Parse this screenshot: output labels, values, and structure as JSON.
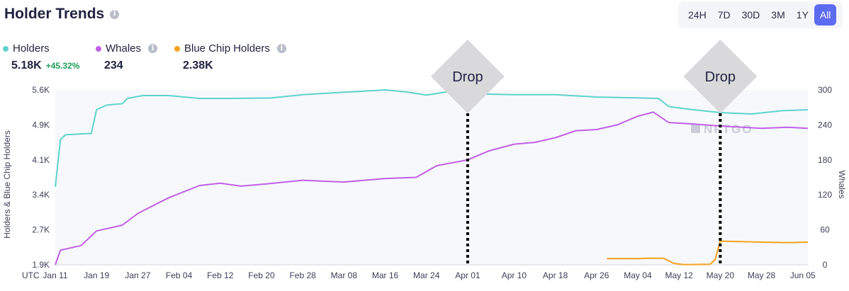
{
  "header": {
    "title": "Holder Trends",
    "info_icon": "info-icon"
  },
  "time_range": {
    "options": [
      "24H",
      "7D",
      "30D",
      "3M",
      "1Y",
      "All"
    ],
    "selected": "All"
  },
  "legend": [
    {
      "label": "Holders",
      "value": "5.18K",
      "delta": "+45.32%",
      "color": "#5fd3cc",
      "info": false
    },
    {
      "label": "Whales",
      "value": "234",
      "delta": "",
      "color": "#c060e8",
      "info": true
    },
    {
      "label": "Blue Chip Holders",
      "value": "2.38K",
      "delta": "",
      "color": "#f5a21c",
      "info": true
    }
  ],
  "watermark": "NFTGO",
  "chart_data": {
    "type": "line",
    "x_unit_label": "UTC",
    "x_ticks": [
      "Jan 11",
      "Jan 19",
      "Jan 27",
      "Feb 04",
      "Feb 12",
      "Feb 20",
      "Feb 28",
      "Mar 08",
      "Mar 16",
      "Mar 24",
      "Apr 01",
      "Apr 10",
      "Apr 18",
      "Apr 26",
      "May 04",
      "May 12",
      "May 20",
      "May 28",
      "Jun 05"
    ],
    "x_range": [
      "Jan 11",
      "Jun 06"
    ],
    "y_left": {
      "label": "Holders & Blue Chip Holders",
      "ticks": [
        "1.9K",
        "2.7K",
        "3.4K",
        "4.1K",
        "4.9K",
        "5.6K"
      ],
      "range": [
        1900,
        5600
      ]
    },
    "y_right": {
      "label": "Whales",
      "ticks": [
        "0",
        "60",
        "120",
        "180",
        "240",
        "300"
      ],
      "range": [
        0,
        300
      ]
    },
    "grid": false,
    "series": [
      {
        "name": "Holders",
        "axis": "left",
        "color": "#5fd3cc",
        "points": [
          [
            "Jan 11",
            3550
          ],
          [
            "Jan 12",
            4550
          ],
          [
            "Jan 13",
            4650
          ],
          [
            "Jan 16",
            4670
          ],
          [
            "Jan 18",
            4680
          ],
          [
            "Jan 19",
            5180
          ],
          [
            "Jan 21",
            5280
          ],
          [
            "Jan 24",
            5310
          ],
          [
            "Jan 25",
            5420
          ],
          [
            "Jan 28",
            5480
          ],
          [
            "Feb 02",
            5480
          ],
          [
            "Feb 08",
            5420
          ],
          [
            "Feb 14",
            5420
          ],
          [
            "Feb 22",
            5430
          ],
          [
            "Feb 28",
            5500
          ],
          [
            "Mar 08",
            5550
          ],
          [
            "Mar 16",
            5600
          ],
          [
            "Mar 20",
            5560
          ],
          [
            "Mar 24",
            5490
          ],
          [
            "Mar 28",
            5560
          ],
          [
            "Apr 01",
            5520
          ],
          [
            "Apr 10",
            5500
          ],
          [
            "Apr 18",
            5500
          ],
          [
            "Apr 26",
            5450
          ],
          [
            "May 04",
            5430
          ],
          [
            "May 08",
            5420
          ],
          [
            "May 10",
            5250
          ],
          [
            "May 14",
            5190
          ],
          [
            "May 20",
            5120
          ],
          [
            "May 26",
            5090
          ],
          [
            "Jun 01",
            5160
          ],
          [
            "Jun 06",
            5180
          ]
        ]
      },
      {
        "name": "Whales",
        "axis": "right",
        "color": "#c060e8",
        "points": [
          [
            "Jan 11",
            0
          ],
          [
            "Jan 12",
            25
          ],
          [
            "Jan 16",
            33
          ],
          [
            "Jan 19",
            58
          ],
          [
            "Jan 24",
            68
          ],
          [
            "Jan 27",
            88
          ],
          [
            "Feb 02",
            115
          ],
          [
            "Feb 08",
            136
          ],
          [
            "Feb 12",
            140
          ],
          [
            "Feb 16",
            135
          ],
          [
            "Feb 20",
            138
          ],
          [
            "Feb 28",
            145
          ],
          [
            "Mar 08",
            142
          ],
          [
            "Mar 16",
            148
          ],
          [
            "Mar 22",
            150
          ],
          [
            "Mar 26",
            170
          ],
          [
            "Apr 01",
            180
          ],
          [
            "Apr 05",
            195
          ],
          [
            "Apr 10",
            207
          ],
          [
            "Apr 14",
            210
          ],
          [
            "Apr 18",
            218
          ],
          [
            "Apr 22",
            230
          ],
          [
            "Apr 26",
            232
          ],
          [
            "Apr 30",
            240
          ],
          [
            "May 04",
            255
          ],
          [
            "May 07",
            262
          ],
          [
            "May 10",
            244
          ],
          [
            "May 14",
            242
          ],
          [
            "May 20",
            238
          ],
          [
            "May 28",
            234
          ],
          [
            "Jun 02",
            236
          ],
          [
            "Jun 06",
            234
          ]
        ]
      },
      {
        "name": "Blue Chip Holders",
        "axis": "left",
        "color": "#f5a21c",
        "points": [
          [
            "Apr 28",
            2030
          ],
          [
            "May 04",
            2030
          ],
          [
            "May 06",
            2040
          ],
          [
            "May 09",
            2040
          ],
          [
            "May 11",
            1930
          ],
          [
            "May 13",
            1905
          ],
          [
            "May 18",
            1910
          ],
          [
            "May 19",
            2010
          ],
          [
            "May 20",
            2400
          ],
          [
            "May 24",
            2390
          ],
          [
            "May 28",
            2380
          ],
          [
            "Jun 02",
            2370
          ],
          [
            "Jun 06",
            2380
          ]
        ]
      }
    ],
    "annotations": [
      {
        "text": "Drop",
        "x": "Apr 01"
      },
      {
        "text": "Drop",
        "x": "May 20"
      }
    ]
  }
}
